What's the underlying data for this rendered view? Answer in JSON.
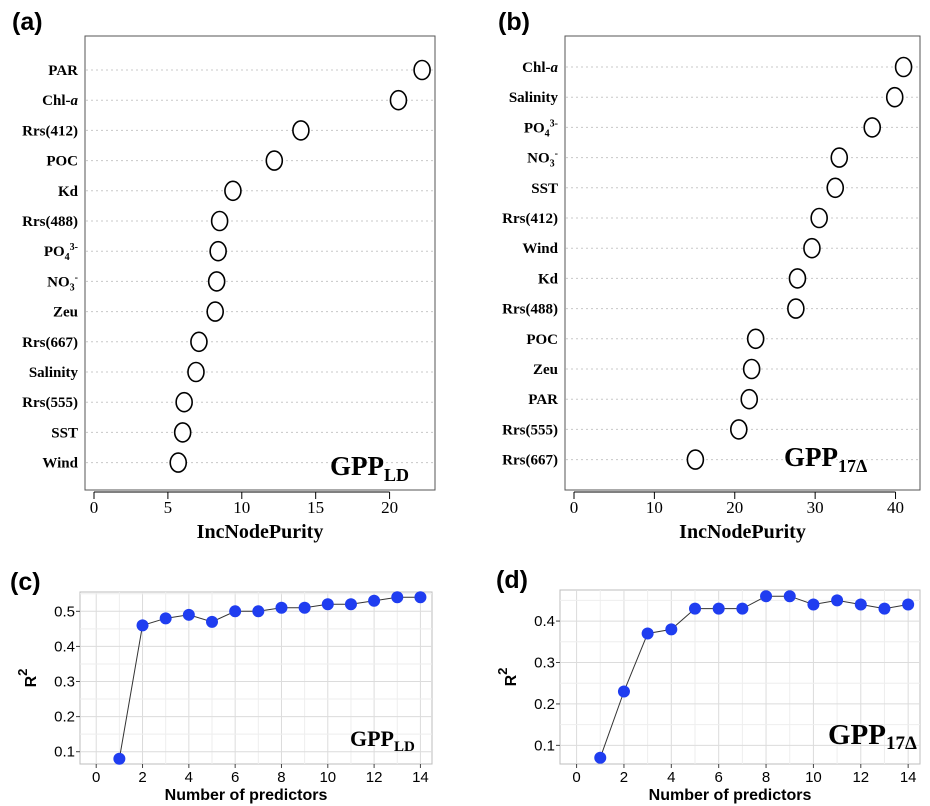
{
  "chart_data": [
    {
      "type": "scatter",
      "panel_label": "(a)",
      "annotation_main": "GPP",
      "annotation_sub": "LD",
      "xlabel": "IncNodePurity",
      "xlim": [
        0,
        22.6
      ],
      "xticks": [
        0,
        5,
        10,
        15,
        20
      ],
      "categories": [
        {
          "label": "PAR",
          "value": 22.2
        },
        {
          "label": "Chl-",
          "label_italic": "a",
          "value": 20.6
        },
        {
          "label": "Rrs(412)",
          "value": 14.0
        },
        {
          "label": "POC",
          "value": 12.2
        },
        {
          "label": "Kd",
          "value": 9.4
        },
        {
          "label": "Rrs(488)",
          "value": 8.5
        },
        {
          "label": "PO",
          "label_sub": "4",
          "label_sup": "3-",
          "value": 8.4
        },
        {
          "label": "NO",
          "label_sub": "3",
          "label_sup": "-",
          "value": 8.3
        },
        {
          "label": "Zeu",
          "value": 8.2
        },
        {
          "label": "Rrs(667)",
          "value": 7.1
        },
        {
          "label": "Salinity",
          "value": 6.9
        },
        {
          "label": "Rrs(555)",
          "value": 6.1
        },
        {
          "label": "SST",
          "value": 6.0
        },
        {
          "label": "Wind",
          "value": 5.7
        }
      ]
    },
    {
      "type": "scatter",
      "panel_label": "(b)",
      "annotation_main": "GPP",
      "annotation_sub": "17Δ",
      "xlabel": "IncNodePurity",
      "xlim": [
        0,
        41.8
      ],
      "xticks": [
        0,
        10,
        20,
        30,
        40
      ],
      "categories": [
        {
          "label": "Chl-",
          "label_italic": "a",
          "value": 41.0
        },
        {
          "label": "Salinity",
          "value": 39.9
        },
        {
          "label": "PO",
          "label_sub": "4",
          "label_sup": "3-",
          "value": 37.1
        },
        {
          "label": "NO",
          "label_sub": "3",
          "label_sup": "-",
          "value": 33.0
        },
        {
          "label": "SST",
          "value": 32.5
        },
        {
          "label": "Rrs(412)",
          "value": 30.5
        },
        {
          "label": "Wind",
          "value": 29.6
        },
        {
          "label": "Kd",
          "value": 27.8
        },
        {
          "label": "Rrs(488)",
          "value": 27.6
        },
        {
          "label": "POC",
          "value": 22.6
        },
        {
          "label": "Zeu",
          "value": 22.1
        },
        {
          "label": "PAR",
          "value": 21.8
        },
        {
          "label": "Rrs(555)",
          "value": 20.5
        },
        {
          "label": "Rrs(667)",
          "value": 15.1
        }
      ]
    },
    {
      "type": "line",
      "panel_label": "(c)",
      "annotation_main": "GPP",
      "annotation_sub": "LD",
      "xlabel": "Number of predictors",
      "ylabel": "R",
      "ylabel_sup": "2",
      "xlim": [
        -0.7,
        14.5
      ],
      "ylim": [
        0.065,
        0.555
      ],
      "xticks": [
        0,
        2,
        4,
        6,
        8,
        10,
        12,
        14
      ],
      "yticks": [
        0.1,
        0.2,
        0.3,
        0.4,
        0.5
      ],
      "x": [
        1,
        2,
        3,
        4,
        5,
        6,
        7,
        8,
        9,
        10,
        11,
        12,
        13,
        14
      ],
      "y": [
        0.08,
        0.46,
        0.48,
        0.49,
        0.47,
        0.5,
        0.5,
        0.51,
        0.51,
        0.52,
        0.52,
        0.53,
        0.54,
        0.54
      ],
      "grid": true,
      "point_color": "#1f3df0"
    },
    {
      "type": "line",
      "panel_label": "(d)",
      "annotation_main": "GPP",
      "annotation_sub": "17Δ",
      "xlabel": "Number of predictors",
      "ylabel": "R",
      "ylabel_sup": "2",
      "xlim": [
        -0.7,
        14.5
      ],
      "ylim": [
        0.055,
        0.475
      ],
      "xticks": [
        0,
        2,
        4,
        6,
        8,
        10,
        12,
        14
      ],
      "yticks": [
        0.1,
        0.2,
        0.3,
        0.4
      ],
      "x": [
        1,
        2,
        3,
        4,
        5,
        6,
        7,
        8,
        9,
        10,
        11,
        12,
        13,
        14
      ],
      "y": [
        0.07,
        0.23,
        0.37,
        0.38,
        0.43,
        0.43,
        0.43,
        0.46,
        0.46,
        0.44,
        0.45,
        0.44,
        0.43,
        0.44
      ],
      "grid": true,
      "point_color": "#1f3df0"
    }
  ]
}
